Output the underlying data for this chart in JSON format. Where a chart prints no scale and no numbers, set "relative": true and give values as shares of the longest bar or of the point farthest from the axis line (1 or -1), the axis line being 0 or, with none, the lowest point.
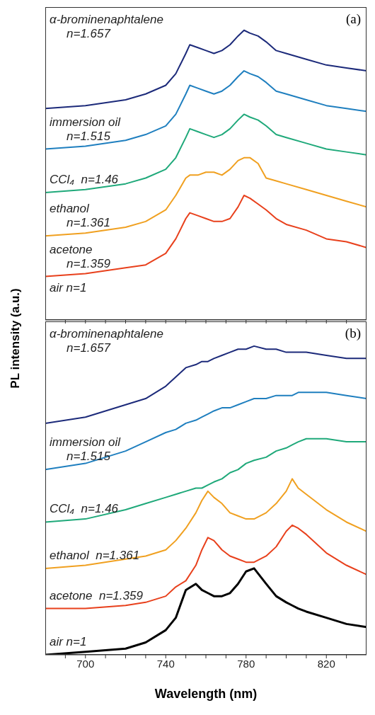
{
  "chart_data": [
    {
      "type": "line",
      "relative": true,
      "ylabel": "PL intensity (a.u.)",
      "annotations": [
        "(a)",
        "air n=1"
      ],
      "tick_labels": false,
      "legend": false,
      "grid": false,
      "xlim": [
        680,
        840
      ],
      "xticks": [
        {
          "value": 690,
          "label": null
        },
        700,
        {
          "value": 710,
          "label": null
        },
        {
          "value": 720,
          "label": null
        },
        {
          "value": 730,
          "label": null
        },
        740,
        {
          "value": 750,
          "label": null
        },
        {
          "value": 760,
          "label": null
        },
        {
          "value": 770,
          "label": null
        },
        780,
        {
          "value": 790,
          "label": null
        },
        {
          "value": 800,
          "label": null
        },
        {
          "value": 810,
          "label": null
        },
        820,
        {
          "value": 830,
          "label": null
        }
      ],
      "x": [
        680,
        700,
        720,
        730,
        740,
        745,
        750,
        752,
        756,
        760,
        764,
        768,
        772,
        776,
        779,
        782,
        786,
        790,
        795,
        800,
        810,
        820,
        830,
        840
      ],
      "series": [
        {
          "name": "α-brominenaphtalene\nn=1.657",
          "color": "#1c2a7a",
          "values": [
            0.73,
            0.74,
            0.76,
            0.78,
            0.81,
            0.85,
            0.92,
            0.95,
            0.94,
            0.93,
            0.92,
            0.93,
            0.95,
            0.98,
            1.0,
            0.99,
            0.98,
            0.96,
            0.93,
            0.92,
            0.9,
            0.88,
            0.87,
            0.86
          ]
        },
        {
          "name": "immersion oil\nn=1.515",
          "color": "#1f7fbf",
          "values": [
            0.59,
            0.6,
            0.62,
            0.64,
            0.67,
            0.71,
            0.78,
            0.81,
            0.8,
            0.79,
            0.78,
            0.79,
            0.81,
            0.84,
            0.86,
            0.85,
            0.84,
            0.82,
            0.79,
            0.78,
            0.76,
            0.74,
            0.73,
            0.72
          ]
        },
        {
          "name": "CCl₄  n=1.46",
          "color": "#1fa97a",
          "values": [
            0.44,
            0.45,
            0.47,
            0.49,
            0.52,
            0.56,
            0.63,
            0.66,
            0.65,
            0.64,
            0.63,
            0.64,
            0.66,
            0.69,
            0.71,
            0.7,
            0.69,
            0.67,
            0.64,
            0.63,
            0.61,
            0.59,
            0.58,
            0.57
          ]
        },
        {
          "name": "ethanol\nn=1.361",
          "color": "#f0a020",
          "values": [
            0.29,
            0.3,
            0.32,
            0.34,
            0.38,
            0.43,
            0.49,
            0.5,
            0.5,
            0.51,
            0.51,
            0.5,
            0.52,
            0.55,
            0.56,
            0.56,
            0.54,
            0.49,
            0.48,
            0.47,
            0.45,
            0.43,
            0.41,
            0.39
          ]
        },
        {
          "name": "acetone\nn=1.359",
          "color": "#e8401c",
          "values": [
            0.15,
            0.16,
            0.18,
            0.19,
            0.23,
            0.28,
            0.35,
            0.37,
            0.36,
            0.35,
            0.34,
            0.34,
            0.35,
            0.39,
            0.43,
            0.42,
            0.4,
            0.38,
            0.35,
            0.33,
            0.31,
            0.28,
            0.27,
            0.25
          ]
        }
      ]
    },
    {
      "type": "line",
      "relative": true,
      "xlabel": "Wavelength (nm)",
      "annotations": [
        "(b)"
      ],
      "legend": false,
      "grid": false,
      "xlim": [
        680,
        840
      ],
      "xticks": [
        {
          "value": 690,
          "label": null
        },
        700,
        {
          "value": 710,
          "label": null
        },
        {
          "value": 720,
          "label": null
        },
        {
          "value": 730,
          "label": null
        },
        740,
        {
          "value": 750,
          "label": null
        },
        {
          "value": 760,
          "label": null
        },
        {
          "value": 770,
          "label": null
        },
        780,
        {
          "value": 790,
          "label": null
        },
        {
          "value": 800,
          "label": null
        },
        {
          "value": 810,
          "label": null
        },
        820,
        {
          "value": 830,
          "label": null
        }
      ],
      "x": [
        680,
        700,
        720,
        730,
        740,
        745,
        750,
        755,
        758,
        761,
        764,
        768,
        772,
        776,
        780,
        784,
        790,
        795,
        800,
        803,
        806,
        810,
        820,
        830,
        840
      ],
      "series": [
        {
          "name": "α-brominenaphtalene\nn=1.657",
          "color": "#1c2a7a",
          "values": [
            0.75,
            0.77,
            0.81,
            0.83,
            0.87,
            0.9,
            0.93,
            0.94,
            0.95,
            0.95,
            0.96,
            0.97,
            0.98,
            0.99,
            0.99,
            1.0,
            0.99,
            0.99,
            0.98,
            0.98,
            0.98,
            0.98,
            0.97,
            0.96,
            0.96
          ]
        },
        {
          "name": "immersion oil\nn=1.515",
          "color": "#1f7fbf",
          "values": [
            0.6,
            0.62,
            0.66,
            0.69,
            0.72,
            0.73,
            0.75,
            0.76,
            0.77,
            0.78,
            0.79,
            0.8,
            0.8,
            0.81,
            0.82,
            0.83,
            0.83,
            0.84,
            0.84,
            0.84,
            0.85,
            0.85,
            0.85,
            0.84,
            0.83
          ]
        },
        {
          "name": "CCl₄  n=1.46",
          "color": "#1fa97a",
          "values": [
            0.43,
            0.44,
            0.47,
            0.49,
            0.51,
            0.52,
            0.53,
            0.54,
            0.54,
            0.55,
            0.56,
            0.57,
            0.59,
            0.6,
            0.62,
            0.63,
            0.64,
            0.66,
            0.67,
            0.68,
            0.69,
            0.7,
            0.7,
            0.69,
            0.69
          ]
        },
        {
          "name": "ethanol  n=1.361",
          "color": "#f0a020",
          "values": [
            0.28,
            0.29,
            0.31,
            0.32,
            0.34,
            0.37,
            0.41,
            0.46,
            0.5,
            0.53,
            0.51,
            0.49,
            0.46,
            0.45,
            0.44,
            0.44,
            0.46,
            0.49,
            0.53,
            0.57,
            0.54,
            0.52,
            0.47,
            0.43,
            0.4
          ]
        },
        {
          "name": "acetone  n=1.359",
          "color": "#e8401c",
          "values": [
            0.15,
            0.15,
            0.16,
            0.17,
            0.19,
            0.22,
            0.24,
            0.29,
            0.34,
            0.38,
            0.37,
            0.34,
            0.32,
            0.31,
            0.3,
            0.3,
            0.32,
            0.35,
            0.4,
            0.42,
            0.41,
            0.39,
            0.33,
            0.29,
            0.26
          ]
        },
        {
          "name": "air n=1",
          "color": "#000000",
          "values": [
            0,
            0.01,
            0.02,
            0.04,
            0.08,
            0.12,
            0.21,
            0.23,
            0.21,
            0.2,
            0.19,
            0.19,
            0.2,
            0.23,
            0.27,
            0.28,
            0.23,
            0.19,
            0.17,
            0.16,
            0.15,
            0.14,
            0.12,
            0.1,
            0.09
          ]
        }
      ]
    }
  ]
}
